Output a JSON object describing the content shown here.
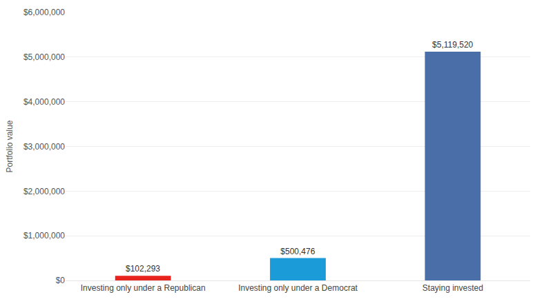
{
  "chart_data": {
    "type": "bar",
    "categories": [
      "Investing only under a Republican",
      "Investing only under a Democrat",
      "Staying invested"
    ],
    "values": [
      102293,
      500476,
      5119520
    ],
    "value_labels": [
      "$102,293",
      "$500,476",
      "$5,119,520"
    ],
    "colors": [
      "#e8231d",
      "#1b9bd7",
      "#4a6ea8"
    ],
    "ylabel": "Portfolio value",
    "ylim": [
      0,
      6000000
    ],
    "yticks": [
      {
        "value": 0,
        "label": "$0"
      },
      {
        "value": 1000000,
        "label": "$1,000,000"
      },
      {
        "value": 2000000,
        "label": "$2,000,000"
      },
      {
        "value": 3000000,
        "label": "$3,000,000"
      },
      {
        "value": 4000000,
        "label": "$4,000,000"
      },
      {
        "value": 5000000,
        "label": "$5,000,000"
      },
      {
        "value": 6000000,
        "label": "$6,000,000"
      }
    ],
    "grid": true,
    "data_labels": true
  }
}
